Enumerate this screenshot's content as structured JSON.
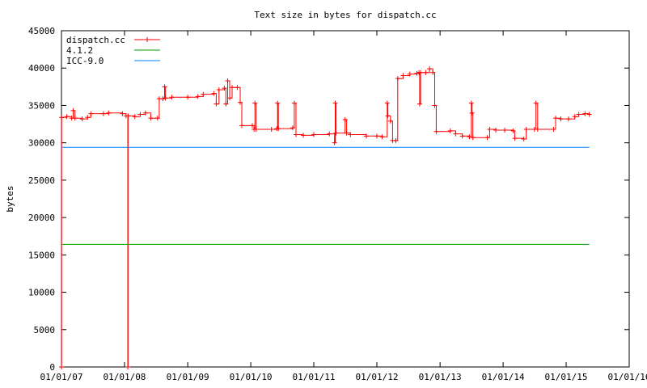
{
  "chart_data": {
    "type": "line",
    "title": "Text size in bytes for dispatch.cc",
    "xlabel": "",
    "ylabel": "bytes",
    "xlim": [
      "2007-01-01",
      "2016-01-01"
    ],
    "ylim": [
      0,
      45000
    ],
    "x_ticks": [
      "01/01/07",
      "01/01/08",
      "01/01/09",
      "01/01/10",
      "01/01/11",
      "01/01/12",
      "01/01/13",
      "01/01/14",
      "01/01/15",
      "01/01/16"
    ],
    "y_ticks": [
      "0",
      "5000",
      "10000",
      "15000",
      "20000",
      "25000",
      "30000",
      "35000",
      "40000",
      "45000"
    ],
    "legend_position": "top-left",
    "grid": false,
    "series": [
      {
        "name": "dispatch.cc",
        "color": "#ff0000",
        "marker": "plus",
        "points": [
          [
            "2007-01-01",
            0
          ],
          [
            "2007-01-02",
            33400
          ],
          [
            "2007-02-01",
            33500
          ],
          [
            "2007-03-01",
            33300
          ],
          [
            "2007-03-10",
            34300
          ],
          [
            "2007-03-20",
            33300
          ],
          [
            "2007-05-01",
            33200
          ],
          [
            "2007-06-01",
            33400
          ],
          [
            "2007-06-20",
            33900
          ],
          [
            "2007-09-01",
            33900
          ],
          [
            "2007-10-01",
            34000
          ],
          [
            "2007-12-20",
            33900
          ],
          [
            "2008-01-10",
            33600
          ],
          [
            "2008-01-20",
            0
          ],
          [
            "2008-01-22",
            33600
          ],
          [
            "2008-03-01",
            33500
          ],
          [
            "2008-04-01",
            33800
          ],
          [
            "2008-05-01",
            34000
          ],
          [
            "2008-06-01",
            33300
          ],
          [
            "2008-07-10",
            33300
          ],
          [
            "2008-07-20",
            35900
          ],
          [
            "2008-08-10",
            35900
          ],
          [
            "2008-08-20",
            37500
          ],
          [
            "2008-08-25",
            36000
          ],
          [
            "2008-10-01",
            36100
          ],
          [
            "2009-01-01",
            36100
          ],
          [
            "2009-03-01",
            36200
          ],
          [
            "2009-04-01",
            36500
          ],
          [
            "2009-06-01",
            36600
          ],
          [
            "2009-06-15",
            35200
          ],
          [
            "2009-07-01",
            37100
          ],
          [
            "2009-08-01",
            37300
          ],
          [
            "2009-08-10",
            35200
          ],
          [
            "2009-08-20",
            38300
          ],
          [
            "2009-09-01",
            36000
          ],
          [
            "2009-09-15",
            37400
          ],
          [
            "2009-10-15",
            37400
          ],
          [
            "2009-11-01",
            35400
          ],
          [
            "2009-11-10",
            32300
          ],
          [
            "2010-01-10",
            32300
          ],
          [
            "2010-01-20",
            31800
          ],
          [
            "2010-01-25",
            35300
          ],
          [
            "2010-02-01",
            31800
          ],
          [
            "2010-05-01",
            31800
          ],
          [
            "2010-06-01",
            31900
          ],
          [
            "2010-06-05",
            35300
          ],
          [
            "2010-06-10",
            31900
          ],
          [
            "2010-09-01",
            32000
          ],
          [
            "2010-09-10",
            35300
          ],
          [
            "2010-09-20",
            31100
          ],
          [
            "2010-11-01",
            31000
          ],
          [
            "2011-01-01",
            31100
          ],
          [
            "2011-04-01",
            31200
          ],
          [
            "2011-05-01",
            30000
          ],
          [
            "2011-05-05",
            35300
          ],
          [
            "2011-05-10",
            31300
          ],
          [
            "2011-07-01",
            33100
          ],
          [
            "2011-07-10",
            31300
          ],
          [
            "2011-08-01",
            31100
          ],
          [
            "2011-11-01",
            30900
          ],
          [
            "2012-01-01",
            30900
          ],
          [
            "2012-02-01",
            30800
          ],
          [
            "2012-03-01",
            35300
          ],
          [
            "2012-03-05",
            33600
          ],
          [
            "2012-03-20",
            32900
          ],
          [
            "2012-04-01",
            30300
          ],
          [
            "2012-04-20",
            30300
          ],
          [
            "2012-05-01",
            38600
          ],
          [
            "2012-06-01",
            39000
          ],
          [
            "2012-07-10",
            39200
          ],
          [
            "2012-08-20",
            39300
          ],
          [
            "2012-09-01",
            39400
          ],
          [
            "2012-09-05",
            35200
          ],
          [
            "2012-09-10",
            39400
          ],
          [
            "2012-10-10",
            39400
          ],
          [
            "2012-11-01",
            39900
          ],
          [
            "2012-11-20",
            39400
          ],
          [
            "2012-12-01",
            35000
          ],
          [
            "2012-12-10",
            31500
          ],
          [
            "2013-03-01",
            31600
          ],
          [
            "2013-04-01",
            31200
          ],
          [
            "2013-05-10",
            30900
          ],
          [
            "2013-06-20",
            30800
          ],
          [
            "2013-07-01",
            35300
          ],
          [
            "2013-07-05",
            34000
          ],
          [
            "2013-07-10",
            30700
          ],
          [
            "2013-10-01",
            30700
          ],
          [
            "2013-10-15",
            31800
          ],
          [
            "2013-11-20",
            31700
          ],
          [
            "2014-01-10",
            31700
          ],
          [
            "2014-03-01",
            31600
          ],
          [
            "2014-03-10",
            30600
          ],
          [
            "2014-05-01",
            30500
          ],
          [
            "2014-05-15",
            31800
          ],
          [
            "2014-07-01",
            31800
          ],
          [
            "2014-07-10",
            35300
          ],
          [
            "2014-07-20",
            31800
          ],
          [
            "2014-10-20",
            31800
          ],
          [
            "2014-11-01",
            33300
          ],
          [
            "2014-12-01",
            33200
          ],
          [
            "2015-01-15",
            33200
          ],
          [
            "2015-02-20",
            33500
          ],
          [
            "2015-03-15",
            33800
          ],
          [
            "2015-04-20",
            33900
          ],
          [
            "2015-05-15",
            33800
          ]
        ]
      },
      {
        "name": "4.1.2",
        "color": "#00a000",
        "marker": "none",
        "points": [
          [
            "2007-01-01",
            16400
          ],
          [
            "2015-05-15",
            16400
          ]
        ]
      },
      {
        "name": "ICC-9.0",
        "color": "#0080ff",
        "marker": "none",
        "points": [
          [
            "2007-01-01",
            29400
          ],
          [
            "2015-05-15",
            29400
          ]
        ]
      }
    ]
  }
}
